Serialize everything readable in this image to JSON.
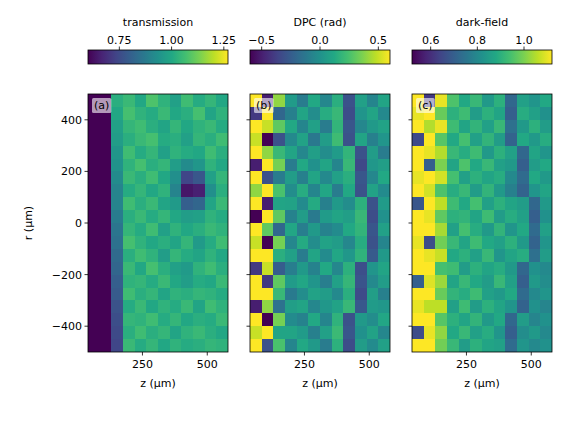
{
  "chart_data": [
    {
      "type": "heatmap",
      "label": "(a)",
      "title": "transmission",
      "xlabel": "z (µm)",
      "ylabel": "r (µm)",
      "xlim": [
        40,
        580
      ],
      "ylim": [
        -500,
        500
      ],
      "xticks": [
        250,
        500
      ],
      "yticks": [
        {
          "value": -400,
          "label": "−400"
        },
        {
          "value": -200,
          "label": "−200"
        },
        0,
        200,
        400
      ],
      "clim": [
        0.6,
        1.27
      ],
      "cticks": [
        0.75,
        {
          "value": 1,
          "label": "1.00"
        },
        1.25
      ],
      "cells": [
        [
          0.55,
          0.6,
          1.02,
          1.05,
          1.0,
          1.08,
          1.03,
          0.98,
          1.06,
          1.01,
          1.04,
          1.0
        ],
        [
          0.55,
          0.58,
          1.0,
          1.07,
          1.03,
          1.01,
          1.05,
          1.0,
          1.02,
          1.07,
          0.99,
          1.03
        ],
        [
          0.56,
          0.58,
          0.98,
          1.04,
          1.06,
          1.02,
          0.99,
          1.04,
          1.0,
          1.03,
          1.05,
          1.01
        ],
        [
          0.55,
          0.57,
          0.97,
          1.02,
          1.05,
          1.07,
          1.01,
          1.02,
          0.98,
          1.04,
          1.02,
          1.06
        ],
        [
          0.55,
          0.57,
          0.95,
          1.06,
          1.01,
          1.04,
          0.98,
          1.03,
          1.01,
          1.0,
          1.06,
          1.02
        ],
        [
          0.55,
          0.57,
          0.94,
          1.03,
          1.07,
          1.02,
          1.04,
          0.97,
          0.92,
          0.95,
          1.03,
          1.0
        ],
        [
          0.56,
          0.56,
          0.92,
          1.05,
          1.02,
          1.06,
          1.0,
          0.93,
          0.74,
          0.78,
          0.98,
          1.04
        ],
        [
          0.55,
          0.56,
          0.9,
          1.01,
          1.04,
          1.0,
          1.03,
          0.9,
          0.64,
          0.66,
          0.93,
          1.02
        ],
        [
          0.55,
          0.56,
          0.9,
          1.06,
          1.02,
          1.05,
          0.99,
          0.96,
          0.8,
          0.82,
          0.99,
          1.05
        ],
        [
          0.55,
          0.56,
          0.88,
          1.02,
          1.05,
          1.01,
          1.04,
          1.0,
          0.97,
          0.98,
          1.03,
          1.01
        ],
        [
          0.55,
          0.56,
          0.86,
          1.04,
          1.01,
          1.06,
          0.98,
          1.03,
          1.0,
          1.02,
          1.05,
          1.03
        ],
        [
          0.55,
          0.56,
          0.85,
          1.07,
          1.03,
          1.0,
          1.02,
          0.99,
          1.04,
          0.96,
          1.01,
          1.06
        ],
        [
          0.56,
          0.55,
          0.83,
          1.02,
          1.06,
          1.03,
          0.97,
          1.04,
          1.01,
          0.99,
          1.03,
          1.0
        ],
        [
          0.55,
          0.55,
          0.82,
          1.05,
          1.0,
          1.07,
          1.02,
          0.98,
          0.96,
          1.03,
          1.06,
          1.02
        ],
        [
          0.55,
          0.55,
          0.8,
          1.03,
          1.04,
          1.01,
          1.05,
          1.0,
          0.97,
          1.01,
          1.0,
          1.05
        ],
        [
          0.55,
          0.55,
          0.79,
          1.06,
          1.02,
          1.04,
          0.99,
          1.03,
          1.02,
          1.04,
          1.03,
          1.01
        ],
        [
          0.55,
          0.56,
          0.77,
          1.01,
          1.05,
          1.0,
          1.03,
          1.01,
          1.05,
          0.99,
          1.06,
          1.03
        ],
        [
          0.55,
          0.55,
          0.76,
          1.04,
          1.03,
          1.06,
          1.01,
          1.04,
          1.0,
          1.02,
          1.01,
          1.05
        ],
        [
          0.55,
          0.55,
          0.75,
          1.02,
          1.06,
          1.02,
          1.04,
          0.99,
          1.03,
          1.05,
          1.02,
          1.0
        ],
        [
          0.55,
          0.55,
          0.74,
          1.05,
          1.01,
          1.04,
          1.0,
          1.03,
          1.01,
          1.02,
          1.04,
          1.03
        ]
      ]
    },
    {
      "type": "heatmap",
      "label": "(b)",
      "title": "DPC (rad)",
      "xlabel": "z (µm)",
      "xlim": [
        40,
        580
      ],
      "ylim": [
        -500,
        500
      ],
      "xticks": [
        250,
        500
      ],
      "yticks": [
        -400,
        -200,
        0,
        200,
        400
      ],
      "tick_labels": "x",
      "clim": [
        -0.6,
        0.6
      ],
      "cticks": [
        {
          "value": -0.5,
          "label": "−0.5"
        },
        {
          "value": 0,
          "label": "0.0"
        },
        0.5
      ],
      "cells": [
        [
          0.6,
          -0.5,
          0.4,
          0.05,
          -0.1,
          0.12,
          -0.05,
          0.15,
          -0.3,
          0.08,
          -0.06,
          0.1
        ],
        [
          -0.4,
          0.6,
          -0.2,
          -0.08,
          0.1,
          -0.02,
          0.14,
          0.2,
          -0.32,
          0.02,
          0.1,
          -0.04
        ],
        [
          0.6,
          0.5,
          0.3,
          0.12,
          -0.06,
          0.08,
          -0.1,
          0.18,
          -0.28,
          -0.05,
          0.04,
          0.09
        ],
        [
          0.5,
          -0.6,
          -0.3,
          -0.04,
          0.09,
          -0.12,
          0.06,
          0.22,
          -0.3,
          0.1,
          -0.08,
          0.02
        ],
        [
          0.6,
          0.4,
          0.2,
          0.1,
          -0.05,
          0.07,
          -0.02,
          0.05,
          0.18,
          -0.3,
          0.06,
          -0.1
        ],
        [
          -0.5,
          0.6,
          0.35,
          -0.1,
          0.12,
          0.0,
          0.1,
          -0.06,
          0.2,
          -0.34,
          0.03,
          0.07
        ],
        [
          0.6,
          -0.3,
          -0.1,
          0.06,
          -0.08,
          0.1,
          -0.04,
          0.08,
          0.15,
          -0.28,
          -0.05,
          0.12
        ],
        [
          0.4,
          0.6,
          0.25,
          -0.02,
          0.14,
          -0.06,
          0.11,
          -0.1,
          0.12,
          -0.3,
          0.09,
          -0.03
        ],
        [
          0.6,
          -0.5,
          0.1,
          0.09,
          -0.03,
          0.13,
          -0.08,
          0.04,
          -0.02,
          0.16,
          -0.3,
          0.05
        ],
        [
          -0.6,
          0.6,
          0.3,
          -0.07,
          0.06,
          -0.11,
          0.05,
          0.1,
          0.07,
          0.2,
          -0.32,
          0.0
        ],
        [
          0.6,
          0.3,
          -0.2,
          0.11,
          -0.09,
          0.04,
          -0.07,
          -0.03,
          0.12,
          0.18,
          -0.28,
          0.08
        ],
        [
          0.5,
          -0.6,
          0.35,
          -0.05,
          0.13,
          -0.02,
          0.09,
          0.06,
          -0.05,
          0.14,
          -0.3,
          -0.06
        ],
        [
          0.6,
          0.6,
          0.15,
          0.08,
          -0.1,
          0.1,
          -0.03,
          0.11,
          0.03,
          0.17,
          -0.26,
          0.04
        ],
        [
          -0.4,
          0.5,
          -0.25,
          -0.09,
          0.04,
          -0.07,
          0.12,
          -0.05,
          0.16,
          -0.31,
          0.02,
          0.1
        ],
        [
          0.6,
          -0.4,
          0.3,
          0.05,
          0.11,
          0.02,
          -0.09,
          0.08,
          0.19,
          -0.29,
          -0.04,
          0.06
        ],
        [
          0.6,
          0.6,
          0.2,
          -0.11,
          -0.02,
          0.09,
          0.06,
          -0.04,
          0.15,
          -0.33,
          0.07,
          -0.08
        ],
        [
          -0.5,
          0.4,
          -0.15,
          0.07,
          0.1,
          -0.05,
          0.03,
          0.09,
          0.2,
          -0.27,
          0.05,
          0.03
        ],
        [
          0.6,
          -0.6,
          0.35,
          -0.03,
          -0.07,
          0.12,
          -0.06,
          0.17,
          -0.3,
          0.04,
          -0.02,
          0.11
        ],
        [
          0.5,
          0.6,
          0.1,
          0.1,
          0.05,
          -0.08,
          0.08,
          0.21,
          -0.28,
          0.0,
          0.09,
          -0.05
        ],
        [
          0.6,
          -0.3,
          0.25,
          -0.06,
          0.12,
          0.04,
          -0.1,
          0.16,
          -0.32,
          0.06,
          -0.03,
          0.08
        ]
      ]
    },
    {
      "type": "heatmap",
      "label": "(c)",
      "title": "dark-field",
      "xlabel": "z (µm)",
      "xlim": [
        40,
        580
      ],
      "ylim": [
        -500,
        500
      ],
      "xticks": [
        250,
        500
      ],
      "yticks": [
        -400,
        -200,
        0,
        200,
        400
      ],
      "tick_labels": "x",
      "clim": [
        0.52,
        1.12
      ],
      "cticks": [
        0.6,
        0.8,
        {
          "value": 1,
          "label": "1.0"
        }
      ],
      "cells": [
        [
          1.12,
          0.62,
          1.1,
          0.95,
          0.88,
          0.92,
          0.84,
          0.9,
          0.72,
          0.86,
          0.83,
          0.88
        ],
        [
          1.1,
          1.12,
          0.98,
          0.9,
          0.93,
          0.85,
          0.9,
          0.87,
          0.7,
          0.89,
          0.86,
          0.82
        ],
        [
          1.12,
          1.05,
          1.1,
          0.93,
          0.87,
          0.91,
          0.86,
          0.92,
          0.74,
          0.84,
          0.9,
          0.85
        ],
        [
          0.65,
          1.12,
          0.96,
          0.88,
          0.94,
          0.86,
          0.91,
          0.85,
          0.71,
          0.88,
          0.84,
          0.89
        ],
        [
          1.12,
          1.1,
          1.05,
          0.92,
          0.89,
          0.93,
          0.84,
          0.9,
          0.86,
          0.72,
          0.87,
          0.83
        ],
        [
          1.12,
          0.7,
          1.0,
          0.87,
          0.95,
          0.88,
          0.92,
          0.86,
          0.84,
          0.7,
          0.85,
          0.88
        ],
        [
          1.1,
          1.12,
          1.08,
          0.94,
          0.86,
          0.9,
          0.87,
          0.89,
          0.8,
          0.73,
          0.88,
          0.84
        ],
        [
          1.12,
          1.08,
          0.95,
          0.89,
          0.92,
          0.85,
          0.91,
          0.84,
          0.78,
          0.71,
          0.83,
          0.87
        ],
        [
          0.68,
          1.12,
          1.06,
          0.93,
          0.88,
          0.94,
          0.86,
          0.9,
          0.87,
          0.85,
          0.72,
          0.84
        ],
        [
          1.12,
          1.1,
          0.97,
          0.9,
          0.91,
          0.87,
          0.93,
          0.85,
          0.89,
          0.86,
          0.7,
          0.82
        ],
        [
          1.12,
          1.12,
          1.04,
          0.86,
          0.94,
          0.89,
          0.84,
          0.91,
          0.83,
          0.88,
          0.73,
          0.86
        ],
        [
          1.1,
          0.66,
          0.99,
          0.92,
          0.87,
          0.93,
          0.88,
          0.86,
          0.9,
          0.84,
          0.71,
          0.83
        ],
        [
          1.12,
          1.1,
          1.07,
          0.88,
          0.9,
          0.86,
          0.92,
          0.83,
          0.87,
          0.89,
          0.74,
          0.85
        ],
        [
          1.12,
          1.12,
          0.94,
          0.93,
          0.85,
          0.9,
          0.87,
          0.89,
          0.84,
          0.72,
          0.82,
          0.8
        ],
        [
          0.7,
          1.09,
          1.03,
          0.87,
          0.92,
          0.88,
          0.85,
          0.92,
          0.86,
          0.7,
          0.84,
          0.81
        ],
        [
          1.12,
          1.12,
          0.98,
          0.91,
          0.89,
          0.93,
          0.86,
          0.84,
          0.88,
          0.73,
          0.8,
          0.83
        ],
        [
          1.1,
          1.06,
          1.06,
          0.86,
          0.93,
          0.85,
          0.9,
          0.87,
          0.83,
          0.71,
          0.82,
          0.79
        ],
        [
          1.12,
          1.12,
          0.96,
          0.9,
          0.87,
          0.91,
          0.84,
          0.88,
          0.72,
          0.85,
          0.79,
          0.82
        ],
        [
          0.66,
          1.1,
          1.02,
          0.88,
          0.92,
          0.86,
          0.89,
          0.83,
          0.7,
          0.81,
          0.84,
          0.8
        ],
        [
          1.12,
          1.12,
          0.99,
          0.92,
          0.85,
          0.9,
          0.87,
          0.86,
          0.73,
          0.83,
          0.8,
          0.82
        ]
      ]
    }
  ]
}
